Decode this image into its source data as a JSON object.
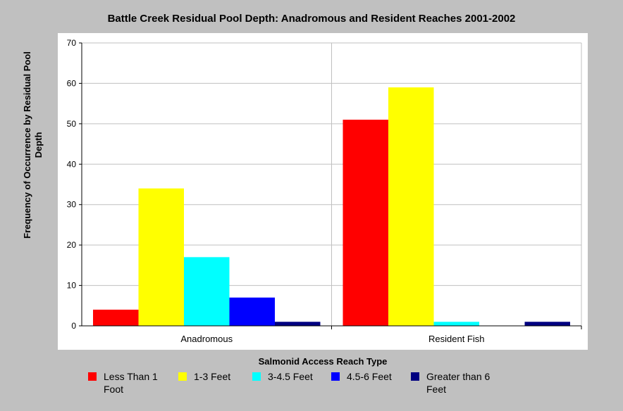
{
  "chart_data": {
    "type": "bar",
    "title": "Battle Creek Residual Pool Depth: Anadromous and Resident Reaches 2001-2002",
    "xlabel": "Salmonid Access Reach Type",
    "ylabel": "Frequency of Occurrence by Residual Pool Depth",
    "categories": [
      "Anadromous",
      "Resident Fish"
    ],
    "ylim": [
      0,
      70
    ],
    "yticks": [
      0,
      10,
      20,
      30,
      40,
      50,
      60,
      70
    ],
    "grid": true,
    "legend_position": "bottom",
    "series": [
      {
        "name": "Less Than 1 Foot",
        "color": "#ff0000",
        "values": [
          4,
          51
        ]
      },
      {
        "name": "1-3 Feet",
        "color": "#ffff00",
        "values": [
          34,
          59
        ]
      },
      {
        "name": "3-4.5 Feet",
        "color": "#00ffff",
        "values": [
          17,
          1
        ]
      },
      {
        "name": "4.5-6 Feet",
        "color": "#0000ff",
        "values": [
          7,
          0
        ]
      },
      {
        "name": "Greater than 6 Feet",
        "color": "#000080",
        "values": [
          1,
          1
        ]
      }
    ]
  }
}
